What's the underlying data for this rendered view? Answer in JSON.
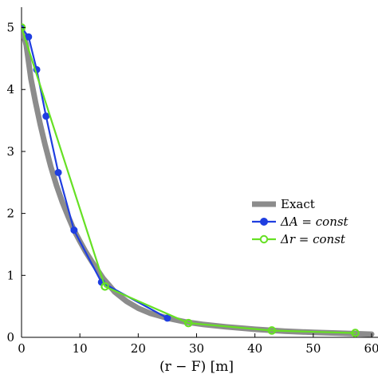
{
  "chart_data": {
    "type": "line",
    "xlabel": "(r − F) [m]",
    "ylabel": "",
    "xlim": [
      0,
      60
    ],
    "ylim": [
      0,
      5.2
    ],
    "xticks": [
      0,
      10,
      20,
      30,
      40,
      50,
      60
    ],
    "yticks": [
      0,
      1,
      2,
      3,
      4,
      5
    ],
    "legend": {
      "position": "top-right",
      "entries": [
        "Exact",
        "ΔA = const",
        "Δr = const"
      ]
    },
    "series": [
      {
        "name": "Exact",
        "color": "#8c8c8c",
        "marker": "none",
        "x": [
          0,
          0.8,
          1.6,
          2.4,
          3.2,
          4,
          5,
          6,
          7,
          8,
          9,
          10,
          11,
          12,
          13,
          14,
          15,
          16,
          18,
          20,
          22,
          25,
          28,
          31,
          35,
          40,
          45,
          50,
          55,
          60
        ],
        "y": [
          5.0,
          4.72,
          4.18,
          3.79,
          3.44,
          3.12,
          2.76,
          2.45,
          2.18,
          1.95,
          1.73,
          1.55,
          1.38,
          1.23,
          1.09,
          0.95,
          0.84,
          0.73,
          0.58,
          0.47,
          0.39,
          0.31,
          0.25,
          0.21,
          0.17,
          0.13,
          0.1,
          0.08,
          0.065,
          0.05
        ]
      },
      {
        "name": "ΔA = const",
        "color": "#1f3ee0",
        "marker": "filled-circle",
        "x": [
          0,
          1.2,
          2.6,
          4.2,
          6.3,
          9.0,
          13.7,
          25.0
        ],
        "y": [
          5.0,
          4.85,
          4.32,
          3.57,
          2.66,
          1.73,
          0.89,
          0.31
        ]
      },
      {
        "name": "Δr = const",
        "color": "#66e024",
        "marker": "open-circle",
        "x": [
          0,
          14.3,
          28.6,
          42.9,
          57.2
        ],
        "y": [
          5.0,
          0.82,
          0.23,
          0.11,
          0.07
        ]
      }
    ]
  }
}
